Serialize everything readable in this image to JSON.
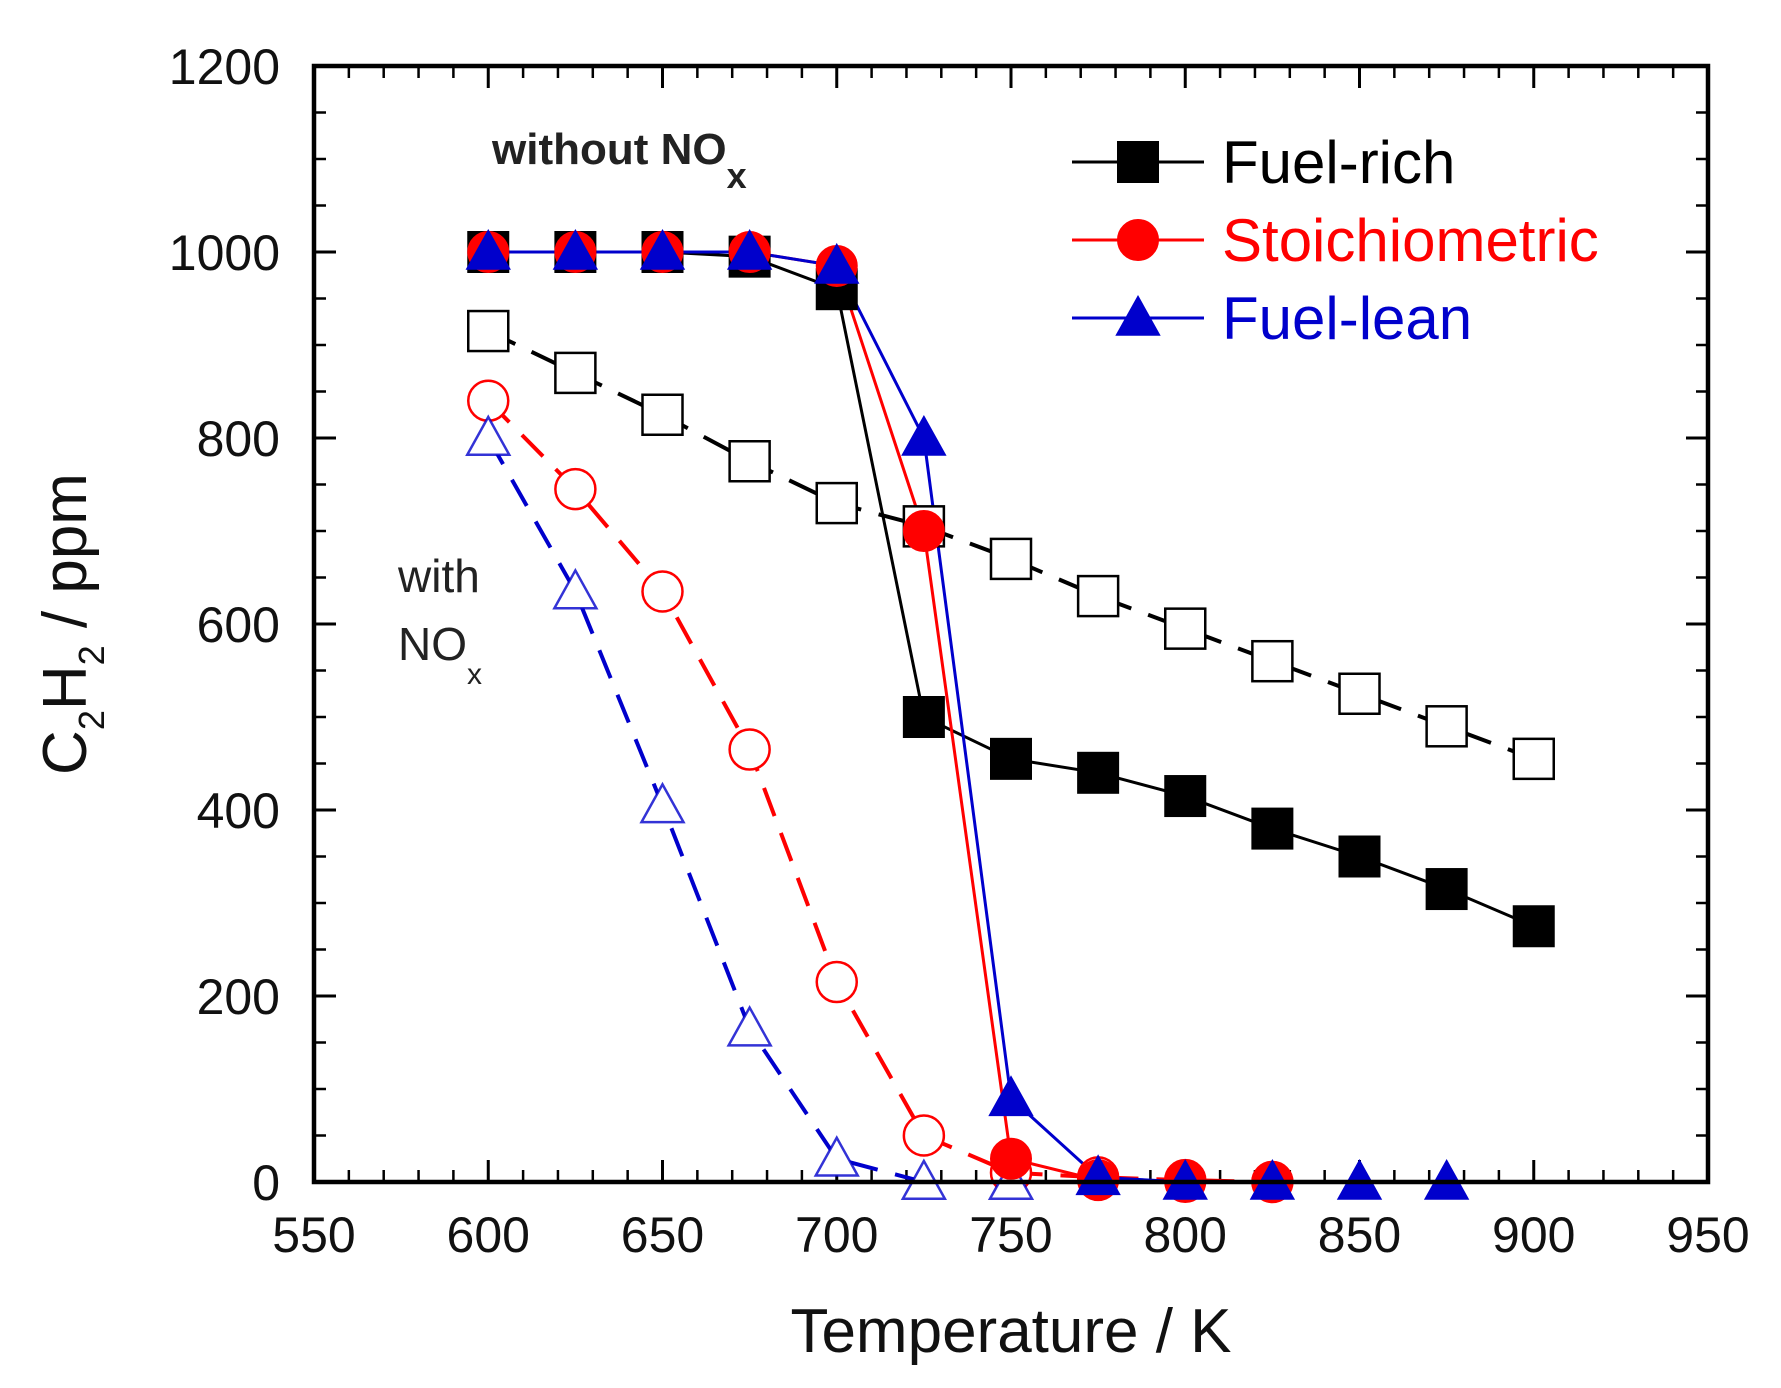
{
  "chart_data": {
    "type": "line",
    "title": "",
    "xlabel": "Temperature / K",
    "ylabel": {
      "main": "C",
      "sub1": "2",
      "mid": "H",
      "sub2": "2",
      "rest": " / ppm"
    },
    "xlim": [
      550,
      950
    ],
    "ylim": [
      0,
      1200
    ],
    "xticks": [
      550,
      600,
      650,
      700,
      750,
      800,
      850,
      900,
      950
    ],
    "yticks": [
      0,
      200,
      400,
      600,
      800,
      1000,
      1200
    ],
    "grid": false,
    "legend_position": "top-right",
    "annotations": {
      "without": {
        "text": "without NO",
        "sub": "x"
      },
      "with_line1": "with",
      "with_line2": {
        "text": "NO",
        "sub": "x"
      }
    },
    "series": [
      {
        "name": "Fuel-rich",
        "condition": "without NOx",
        "color": "#000000",
        "marker": "square",
        "filled": true,
        "dashed": false,
        "in_legend": true,
        "x": [
          600,
          625,
          650,
          675,
          700,
          725,
          750,
          775,
          800,
          825,
          850,
          875,
          900
        ],
        "y": [
          1000,
          1000,
          1000,
          995,
          960,
          500,
          455,
          440,
          415,
          380,
          350,
          315,
          275
        ]
      },
      {
        "name": "Stoichiometric",
        "condition": "without NOx",
        "color": "#ff0000",
        "marker": "circle",
        "filled": true,
        "dashed": false,
        "in_legend": true,
        "x": [
          600,
          625,
          650,
          675,
          700,
          725,
          750,
          775,
          800,
          825
        ],
        "y": [
          1000,
          1000,
          1000,
          1000,
          985,
          700,
          25,
          2,
          0,
          0
        ]
      },
      {
        "name": "Fuel-lean",
        "condition": "without NOx",
        "color": "#0000cc",
        "marker": "triangle",
        "filled": true,
        "dashed": false,
        "in_legend": true,
        "x": [
          600,
          625,
          650,
          675,
          700,
          725,
          750,
          775,
          800,
          825,
          850,
          875
        ],
        "y": [
          1000,
          1000,
          1000,
          1000,
          985,
          800,
          90,
          5,
          0,
          0,
          0,
          0
        ]
      },
      {
        "name": "Fuel-rich",
        "condition": "with NOx",
        "color": "#000000",
        "marker": "square",
        "filled": false,
        "dashed": true,
        "in_legend": false,
        "x": [
          600,
          625,
          650,
          675,
          700,
          725,
          750,
          775,
          800,
          825,
          850,
          875,
          900
        ],
        "y": [
          915,
          870,
          825,
          775,
          730,
          705,
          670,
          630,
          595,
          560,
          525,
          490,
          455
        ]
      },
      {
        "name": "Stoichiometric",
        "condition": "with NOx",
        "color": "#ff0000",
        "marker": "circle",
        "filled": false,
        "dashed": true,
        "in_legend": false,
        "x": [
          600,
          625,
          650,
          675,
          700,
          725,
          750,
          775,
          800,
          825
        ],
        "y": [
          840,
          745,
          635,
          465,
          215,
          50,
          10,
          5,
          2,
          0
        ]
      },
      {
        "name": "Fuel-lean",
        "condition": "with NOx",
        "color": "#0000cc",
        "marker": "triangle",
        "filled": false,
        "dashed": true,
        "in_legend": false,
        "x": [
          600,
          625,
          650,
          675,
          700,
          725,
          750
        ],
        "y": [
          800,
          635,
          405,
          165,
          25,
          0,
          0
        ]
      }
    ]
  }
}
